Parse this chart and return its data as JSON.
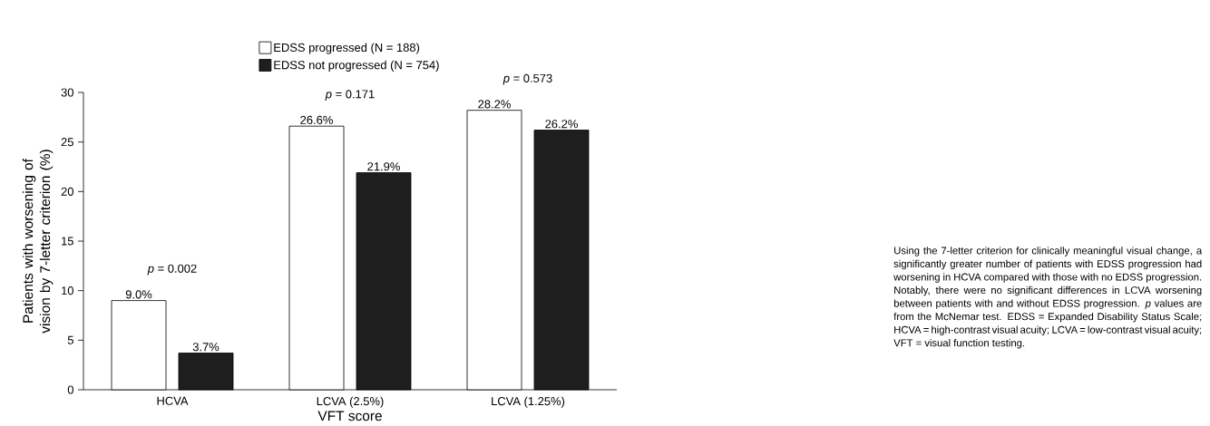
{
  "chart_data": {
    "type": "bar",
    "xlabel": "VFT score",
    "ylabel": "Patients with worsening of vision by 7-letter criterion (%)",
    "categories": [
      "HCVA",
      "LCVA (2.5%)",
      "LCVA (1.25%)"
    ],
    "series": [
      {
        "name": "EDSS progressed (N = 188)",
        "color": "#ffffff",
        "values": [
          9.0,
          26.6,
          28.2
        ],
        "value_labels": [
          "9.0%",
          "26.6%",
          "28.2%"
        ]
      },
      {
        "name": "EDSS not progressed (N = 754)",
        "color": "#1e1e1e",
        "values": [
          3.7,
          21.9,
          26.2
        ],
        "value_labels": [
          "3.7%",
          "21.9%",
          "26.2%"
        ]
      }
    ],
    "ylim": [
      0,
      30
    ],
    "yticks": [
      0,
      5,
      10,
      15,
      20,
      25,
      30
    ],
    "grid": false,
    "legend": "top",
    "annotations": [
      "*p* = 0.002",
      "*p* = 0.171",
      "*p* = 0.573",
      "Using the 7-letter criterion for clinically meaningful visual change, a significantly greater number of patients with EDSS progression had worsening in HCVA compared with those with no EDSS progression. Notably, there were no significant differences in LCVA worsening between patients with and without EDSS progression. *p* values are from the McNemar test. EDSS = Expanded Disability Status Scale; HCVA = high-contrast visual acuity; LCVA = low-contrast visual acuity; VFT = visual function testing."
    ]
  }
}
